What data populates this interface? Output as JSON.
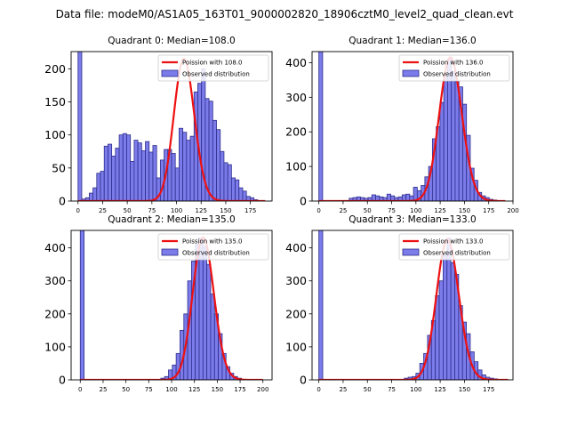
{
  "figure_title": "Data file: modeM0/AS1A05_163T01_9000002820_18906cztM0_level2_quad_clean.evt",
  "colors": {
    "bar_fill": "#7b7bea",
    "bar_edge": "#2e2e8c",
    "poisson_line": "#ee1111"
  },
  "chart_data": [
    {
      "type": "bar",
      "title": "Quadrant 0: Median=108.0",
      "legend": [
        "Poission with 108.0",
        "Observed distribution"
      ],
      "legend_position": "top-right",
      "xlim": [
        -7,
        197
      ],
      "ylim": [
        0,
        226
      ],
      "xticks": [
        0,
        25,
        50,
        75,
        100,
        125,
        150,
        175
      ],
      "yticks": [
        0,
        50,
        100,
        150,
        200
      ],
      "bin_width": 3.8,
      "bins_start": [
        0,
        3.8,
        7.6,
        11.4,
        15.2,
        19,
        22.8,
        26.6,
        30.4,
        34.2,
        38,
        41.8,
        45.6,
        49.4,
        53.2,
        57,
        60.8,
        64.6,
        68.4,
        72.2,
        76,
        79.8,
        83.6,
        87.4,
        91.2,
        95,
        98.8,
        102.6,
        106.4,
        110.2,
        114,
        117.8,
        121.6,
        125.4,
        129.2,
        133,
        136.8,
        140.6,
        144.4,
        148.2,
        152,
        155.8,
        159.6,
        163.4,
        167.2,
        171,
        174.8,
        178.6,
        182.4,
        186.2
      ],
      "counts": [
        226,
        3,
        5,
        12,
        20,
        42,
        45,
        83,
        86,
        68,
        80,
        100,
        102,
        100,
        60,
        92,
        88,
        76,
        90,
        74,
        84,
        35,
        62,
        78,
        78,
        72,
        50,
        110,
        104,
        92,
        98,
        165,
        178,
        200,
        155,
        151,
        122,
        108,
        75,
        58,
        55,
        35,
        32,
        20,
        15,
        7,
        5,
        2,
        0,
        0
      ],
      "poisson_mean": 108.0,
      "poisson_peak": 215,
      "curve_x_range": [
        0,
        190
      ]
    },
    {
      "type": "bar",
      "title": "Quadrant 1: Median=136.0",
      "legend": [
        "Poission with 136.0",
        "Observed distribution"
      ],
      "legend_position": "top-right",
      "xlim": [
        -7,
        200
      ],
      "ylim": [
        0,
        432
      ],
      "xticks": [
        0,
        25,
        50,
        75,
        100,
        125,
        150,
        175,
        200
      ],
      "yticks": [
        0,
        100,
        200,
        300,
        400
      ],
      "bin_width": 3.9,
      "bins_start": [
        0,
        3.9,
        7.8,
        11.7,
        15.6,
        19.5,
        23.4,
        27.3,
        31.2,
        35.1,
        39,
        42.9,
        46.8,
        50.7,
        54.6,
        58.5,
        62.4,
        66.3,
        70.2,
        74.1,
        78,
        81.9,
        85.8,
        89.7,
        93.6,
        97.5,
        101.4,
        105.3,
        109.2,
        113.1,
        117,
        120.9,
        124.8,
        128.7,
        132.6,
        136.5,
        140.4,
        144.3,
        148.2,
        152.1,
        156,
        159.9,
        163.8,
        167.7,
        171.6,
        175.5,
        179.4,
        183.3,
        187.2,
        191.1
      ],
      "counts": [
        432,
        0,
        0,
        0,
        0,
        0,
        0,
        0,
        8,
        10,
        12,
        10,
        8,
        10,
        18,
        15,
        12,
        10,
        20,
        15,
        10,
        12,
        18,
        20,
        15,
        40,
        30,
        45,
        70,
        100,
        180,
        215,
        285,
        360,
        410,
        375,
        345,
        330,
        280,
        190,
        95,
        60,
        25,
        15,
        10,
        5,
        3,
        0,
        0,
        0
      ],
      "poisson_mean": 136.0,
      "poisson_peak": 415,
      "curve_x_range": [
        0,
        192
      ]
    },
    {
      "type": "bar",
      "title": "Quadrant 2: Median=135.0",
      "legend": [
        "Poission with 135.0",
        "Observed distribution"
      ],
      "legend_position": "top-right",
      "xlim": [
        -10,
        210
      ],
      "ylim": [
        0,
        453
      ],
      "xticks": [
        0,
        25,
        50,
        75,
        100,
        125,
        150,
        175,
        200
      ],
      "yticks": [
        0,
        100,
        200,
        300,
        400
      ],
      "bin_width": 4.2,
      "bins_start": [
        0,
        4.2,
        8.4,
        12.6,
        16.8,
        21,
        25.2,
        29.4,
        33.6,
        37.8,
        42,
        46.2,
        50.4,
        54.6,
        58.8,
        63,
        67.2,
        71.4,
        75.6,
        79.8,
        84,
        88.2,
        92.4,
        96.6,
        100.8,
        105,
        109.2,
        113.4,
        117.6,
        121.8,
        126,
        130.2,
        134.4,
        138.6,
        142.8,
        147,
        151.2,
        155.4,
        159.6,
        163.8,
        168,
        172.2,
        176.4,
        180.6,
        184.8,
        189,
        193.2,
        197.4
      ],
      "counts": [
        453,
        0,
        0,
        0,
        0,
        0,
        0,
        0,
        0,
        0,
        0,
        0,
        0,
        0,
        0,
        0,
        0,
        0,
        0,
        0,
        0,
        5,
        10,
        30,
        45,
        80,
        150,
        200,
        300,
        360,
        410,
        430,
        405,
        350,
        260,
        200,
        140,
        80,
        40,
        20,
        10,
        5,
        0,
        0,
        0,
        0,
        0,
        0
      ],
      "poisson_mean": 135.0,
      "poisson_peak": 432,
      "curve_x_range": [
        0,
        200
      ]
    },
    {
      "type": "bar",
      "title": "Quadrant 3: Median=133.0",
      "legend": [
        "Poission with 133.0",
        "Observed distribution"
      ],
      "legend_position": "top-right",
      "xlim": [
        -7,
        200
      ],
      "ylim": [
        0,
        453
      ],
      "xticks": [
        0,
        25,
        50,
        75,
        100,
        125,
        150,
        175
      ],
      "yticks": [
        0,
        100,
        200,
        300,
        400
      ],
      "bin_width": 4.0,
      "bins_start": [
        0,
        4,
        8,
        12,
        16,
        20,
        24,
        28,
        32,
        36,
        40,
        44,
        48,
        52,
        56,
        60,
        64,
        68,
        72,
        76,
        80,
        84,
        88,
        92,
        96,
        100,
        104,
        108,
        112,
        116,
        120,
        124,
        128,
        132,
        136,
        140,
        144,
        148,
        152,
        156,
        160,
        164,
        168,
        172,
        176,
        180,
        184,
        188
      ],
      "counts": [
        453,
        0,
        0,
        0,
        0,
        0,
        0,
        0,
        0,
        0,
        0,
        0,
        0,
        0,
        0,
        0,
        0,
        0,
        0,
        0,
        0,
        0,
        5,
        8,
        10,
        20,
        50,
        80,
        135,
        180,
        255,
        300,
        380,
        430,
        355,
        320,
        225,
        175,
        140,
        85,
        55,
        30,
        15,
        8,
        5,
        3,
        0,
        0
      ],
      "poisson_mean": 133.0,
      "poisson_peak": 425,
      "curve_x_range": [
        0,
        195
      ]
    }
  ]
}
